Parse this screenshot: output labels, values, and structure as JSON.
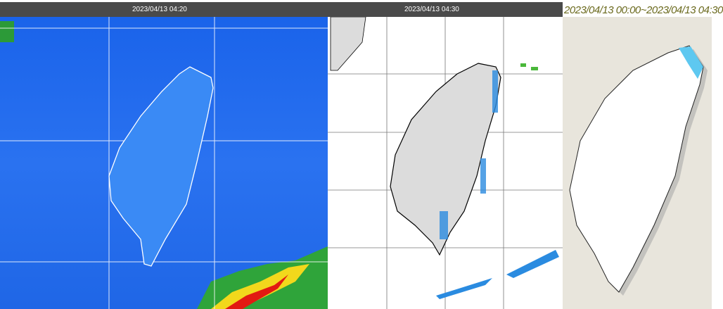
{
  "panels": [
    {
      "type": "infrared-satellite",
      "timestamp": "2023/04/13 04:20"
    },
    {
      "type": "radar-echo",
      "timestamp": "2023/04/13 04:30"
    },
    {
      "type": "accumulated-rainfall",
      "period": "2023/04/13 00:00~2023/04/13 04:30"
    }
  ],
  "colors": {
    "header": "#4a4a4a",
    "satellite_sea": "#1560e8",
    "land_gray": "#dcdcdc",
    "rain_light": "#5ec8f0",
    "period_text": "#6b6a1e"
  }
}
